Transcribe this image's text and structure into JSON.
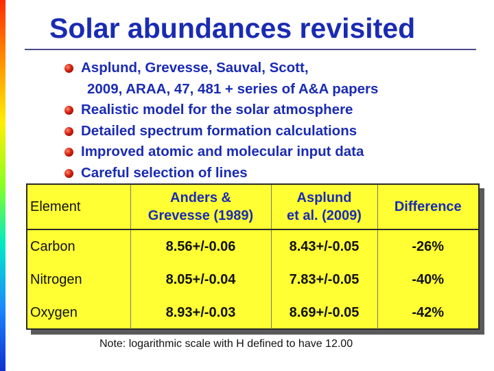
{
  "title": "Solar abundances revisited",
  "bullets": [
    {
      "line1": "Asplund, Grevesse, Sauval, Scott,",
      "line2": "2009, ARAA, 47, 481 + series of A&A papers"
    },
    {
      "line1": "Realistic model for the solar atmosphere"
    },
    {
      "line1": "Detailed spectrum formation calculations"
    },
    {
      "line1": "Improved atomic and molecular input data"
    },
    {
      "line1": "Careful selection of lines"
    }
  ],
  "table": {
    "headers": [
      {
        "line1": "Element"
      },
      {
        "line1": "Anders &",
        "line2": "Grevesse (1989)"
      },
      {
        "line1": "Asplund",
        "line2": "et al. (2009)"
      },
      {
        "line1": "Difference"
      }
    ],
    "rows": [
      [
        "Carbon",
        "8.56+/-0.06",
        "8.43+/-0.05",
        "-26%"
      ],
      [
        "Nitrogen",
        "8.05+/-0.04",
        "7.83+/-0.05",
        "-40%"
      ],
      [
        "Oxygen",
        "8.93+/-0.03",
        "8.69+/-0.05",
        "-42%"
      ]
    ]
  },
  "note": "Note: logarithmic scale with H defined to have 12.00",
  "colors": {
    "title": "#1a2bb3",
    "table_bg": "#ffff33",
    "bullet": "#d42010"
  }
}
